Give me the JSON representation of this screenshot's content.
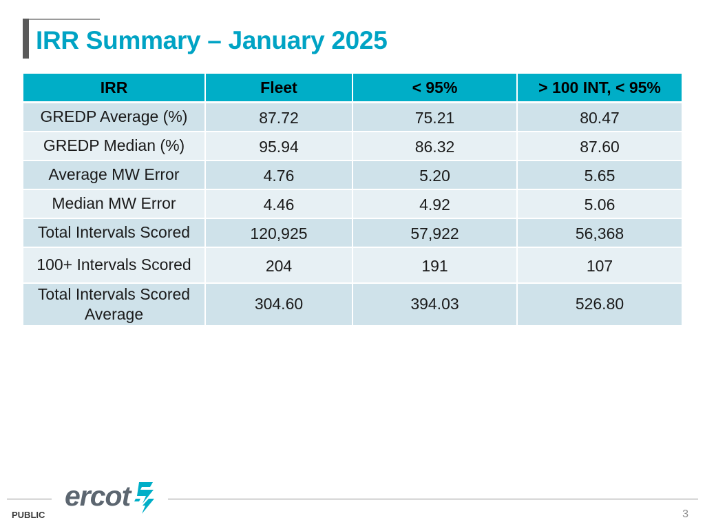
{
  "slide": {
    "title": "IRR Summary – January 2025"
  },
  "table": {
    "headers": [
      "IRR",
      "Fleet",
      "< 95%",
      "> 100 INT, < 95%"
    ],
    "rows": [
      {
        "label": "GREDP Average (%)",
        "values": [
          "87.72",
          "75.21",
          "80.47"
        ]
      },
      {
        "label": "GREDP Median (%)",
        "values": [
          "95.94",
          "86.32",
          "87.60"
        ]
      },
      {
        "label": "Average MW Error",
        "values": [
          "4.76",
          "5.20",
          "5.65"
        ]
      },
      {
        "label": "Median MW Error",
        "values": [
          "4.46",
          "4.92",
          "5.06"
        ]
      },
      {
        "label": "Total Intervals Scored",
        "values": [
          "120,925",
          "57,922",
          "56,368"
        ]
      },
      {
        "label": "100+ Intervals Scored",
        "values": [
          "204",
          "191",
          "107"
        ]
      },
      {
        "label": "Total Intervals Scored Average",
        "values": [
          "304.60",
          "394.03",
          "526.80"
        ]
      }
    ]
  },
  "footer": {
    "label": "PUBLIC",
    "logo_text": "ercot",
    "page_number": "3"
  },
  "colors": {
    "title": "#00a3c4",
    "header_bg": "#00aec7",
    "row_dark": "#cfe2ea",
    "row_light": "#e7f0f4",
    "logo_gray": "#5c6670",
    "logo_teal": "#00aec7"
  },
  "icons": {
    "logo_mark": "ercot-bolt-mark"
  }
}
